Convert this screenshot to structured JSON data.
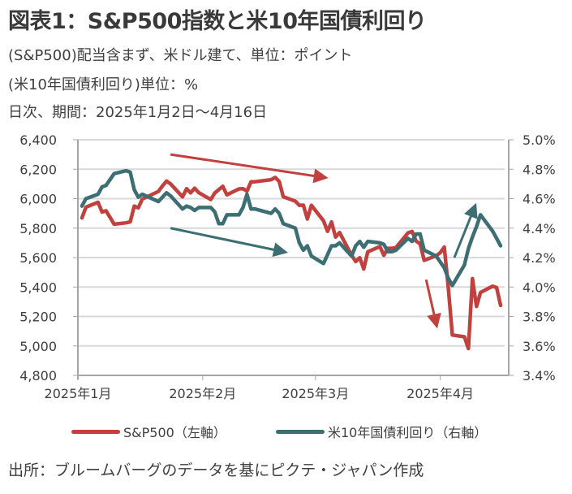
{
  "header": {
    "title": "図表1：S&P500指数と米10年国債利回り",
    "subtitle_1": "(S&P500)配当含まず、米ドル建て、単位：ポイント",
    "subtitle_2": "(米10年国債利回り)単位：%",
    "subtitle_3": "日次、期間：2025年1月2日～4月16日"
  },
  "legend": {
    "sp500_label": "S&P500（左軸）",
    "yield_label": "米10年国債利回り（右軸）"
  },
  "footer": {
    "source": "出所：ブルームバーグのデータを基にピクテ・ジャパン作成"
  },
  "colors": {
    "sp500": "#c0413d",
    "yield": "#3d6e73",
    "grid": "#d9d9d9",
    "axis": "#a6a6a6"
  },
  "chart_data": {
    "type": "line",
    "title": "S&P500指数と米10年国債利回り",
    "x_unit": "day of year 2025 (Jan 1 = 1)",
    "x_range": [
      1,
      107
    ],
    "x_ticks": [
      {
        "day": 1,
        "label": "2025年1月"
      },
      {
        "day": 32,
        "label": "2025年2月"
      },
      {
        "day": 60,
        "label": "2025年3月"
      },
      {
        "day": 91,
        "label": "2025年4月"
      }
    ],
    "y_left": {
      "label": "S&P500（左軸）",
      "range": [
        4800,
        6400
      ],
      "ticks": [
        4800,
        5000,
        5200,
        5400,
        5600,
        5800,
        6000,
        6200,
        6400
      ],
      "tick_labels": [
        "4,800",
        "5,000",
        "5,200",
        "5,400",
        "5,600",
        "5,800",
        "6,000",
        "6,200",
        "6,400"
      ]
    },
    "y_right": {
      "label": "米10年国債利回り（右軸）",
      "range": [
        3.4,
        5.0
      ],
      "ticks": [
        3.4,
        3.6,
        3.8,
        4.0,
        4.2,
        4.4,
        4.6,
        4.8,
        5.0
      ],
      "tick_labels": [
        "3.4%",
        "3.6%",
        "3.8%",
        "4.0%",
        "4.2%",
        "4.4%",
        "4.6%",
        "4.8%",
        "5.0%"
      ]
    },
    "grid": true,
    "legend_position": "bottom",
    "series": [
      {
        "name": "S&P500（左軸）",
        "axis": "left",
        "color": "#c0413d",
        "points": [
          [
            2,
            5869
          ],
          [
            3,
            5942
          ],
          [
            6,
            5975
          ],
          [
            7,
            5909
          ],
          [
            8,
            5918
          ],
          [
            10,
            5827
          ],
          [
            13,
            5836
          ],
          [
            14,
            5842
          ],
          [
            15,
            5950
          ],
          [
            16,
            5937
          ],
          [
            17,
            5997
          ],
          [
            21,
            6049
          ],
          [
            22,
            6086
          ],
          [
            23,
            6119
          ],
          [
            24,
            6101
          ],
          [
            27,
            6012
          ],
          [
            28,
            6068
          ],
          [
            29,
            6039
          ],
          [
            30,
            6071
          ],
          [
            31,
            6041
          ],
          [
            34,
            5994
          ],
          [
            35,
            6038
          ],
          [
            36,
            6061
          ],
          [
            37,
            6084
          ],
          [
            38,
            6026
          ],
          [
            41,
            6066
          ],
          [
            42,
            6068
          ],
          [
            43,
            6051
          ],
          [
            44,
            6115
          ],
          [
            45,
            6115
          ],
          [
            49,
            6129
          ],
          [
            50,
            6144
          ],
          [
            51,
            6117
          ],
          [
            52,
            6013
          ],
          [
            55,
            5983
          ],
          [
            56,
            5955
          ],
          [
            57,
            5956
          ],
          [
            58,
            5862
          ],
          [
            59,
            5955
          ],
          [
            62,
            5850
          ],
          [
            63,
            5778
          ],
          [
            64,
            5842
          ],
          [
            65,
            5739
          ],
          [
            66,
            5770
          ],
          [
            69,
            5615
          ],
          [
            70,
            5573
          ],
          [
            71,
            5599
          ],
          [
            72,
            5522
          ],
          [
            73,
            5639
          ],
          [
            76,
            5675
          ],
          [
            77,
            5615
          ],
          [
            78,
            5663
          ],
          [
            79,
            5663
          ],
          [
            80,
            5668
          ],
          [
            83,
            5768
          ],
          [
            84,
            5777
          ],
          [
            85,
            5712
          ],
          [
            86,
            5693
          ],
          [
            87,
            5581
          ],
          [
            90,
            5612
          ],
          [
            91,
            5633
          ],
          [
            92,
            5671
          ],
          [
            93,
            5397
          ],
          [
            94,
            5074
          ],
          [
            97,
            5062
          ],
          [
            98,
            4982
          ],
          [
            99,
            5457
          ],
          [
            100,
            5268
          ],
          [
            101,
            5363
          ],
          [
            104,
            5406
          ],
          [
            105,
            5396
          ],
          [
            106,
            5275
          ]
        ]
      },
      {
        "name": "米10年国債利回り（右軸）",
        "axis": "right",
        "color": "#3d6e73",
        "points": [
          [
            2,
            4.55
          ],
          [
            3,
            4.6
          ],
          [
            6,
            4.63
          ],
          [
            7,
            4.68
          ],
          [
            8,
            4.69
          ],
          [
            10,
            4.77
          ],
          [
            13,
            4.79
          ],
          [
            14,
            4.78
          ],
          [
            15,
            4.66
          ],
          [
            16,
            4.61
          ],
          [
            17,
            4.63
          ],
          [
            21,
            4.58
          ],
          [
            22,
            4.61
          ],
          [
            23,
            4.64
          ],
          [
            24,
            4.62
          ],
          [
            27,
            4.53
          ],
          [
            28,
            4.55
          ],
          [
            29,
            4.54
          ],
          [
            30,
            4.52
          ],
          [
            31,
            4.54
          ],
          [
            34,
            4.54
          ],
          [
            35,
            4.51
          ],
          [
            36,
            4.43
          ],
          [
            37,
            4.43
          ],
          [
            38,
            4.49
          ],
          [
            41,
            4.49
          ],
          [
            42,
            4.54
          ],
          [
            43,
            4.63
          ],
          [
            44,
            4.53
          ],
          [
            45,
            4.53
          ],
          [
            49,
            4.5
          ],
          [
            50,
            4.53
          ],
          [
            51,
            4.5
          ],
          [
            52,
            4.43
          ],
          [
            55,
            4.4
          ],
          [
            56,
            4.3
          ],
          [
            57,
            4.25
          ],
          [
            58,
            4.28
          ],
          [
            59,
            4.21
          ],
          [
            62,
            4.16
          ],
          [
            63,
            4.22
          ],
          [
            64,
            4.28
          ],
          [
            65,
            4.28
          ],
          [
            66,
            4.3
          ],
          [
            69,
            4.21
          ],
          [
            70,
            4.28
          ],
          [
            71,
            4.31
          ],
          [
            72,
            4.27
          ],
          [
            73,
            4.31
          ],
          [
            76,
            4.3
          ],
          [
            77,
            4.29
          ],
          [
            78,
            4.24
          ],
          [
            79,
            4.24
          ],
          [
            80,
            4.25
          ],
          [
            83,
            4.33
          ],
          [
            84,
            4.31
          ],
          [
            85,
            4.36
          ],
          [
            86,
            4.36
          ],
          [
            87,
            4.25
          ],
          [
            90,
            4.21
          ],
          [
            91,
            4.17
          ],
          [
            92,
            4.13
          ],
          [
            93,
            4.06
          ],
          [
            94,
            4.01
          ],
          [
            97,
            4.15
          ],
          [
            98,
            4.26
          ],
          [
            99,
            4.34
          ],
          [
            100,
            4.41
          ],
          [
            101,
            4.49
          ],
          [
            104,
            4.38
          ],
          [
            105,
            4.33
          ],
          [
            106,
            4.28
          ]
        ]
      }
    ],
    "annotations": [
      {
        "type": "arrow",
        "color": "#c0413d",
        "description": "S&P500 downtrend arrow",
        "from": [
          24,
          6300
        ],
        "to": [
          62,
          6145
        ]
      },
      {
        "type": "arrow",
        "color": "#3d6e73",
        "description": "yield downtrend arrow",
        "from": [
          24,
          4.4
        ],
        "to": [
          52,
          4.24
        ]
      },
      {
        "type": "arrow",
        "color": "#c0413d",
        "description": "S&P500 plunge arrow",
        "from": [
          87.5,
          5450
        ],
        "to": [
          90,
          5150
        ]
      },
      {
        "type": "arrow",
        "color": "#3d6e73",
        "description": "yield spike arrow",
        "from": [
          94.5,
          4.2
        ],
        "to": [
          99.5,
          4.54
        ]
      }
    ]
  }
}
